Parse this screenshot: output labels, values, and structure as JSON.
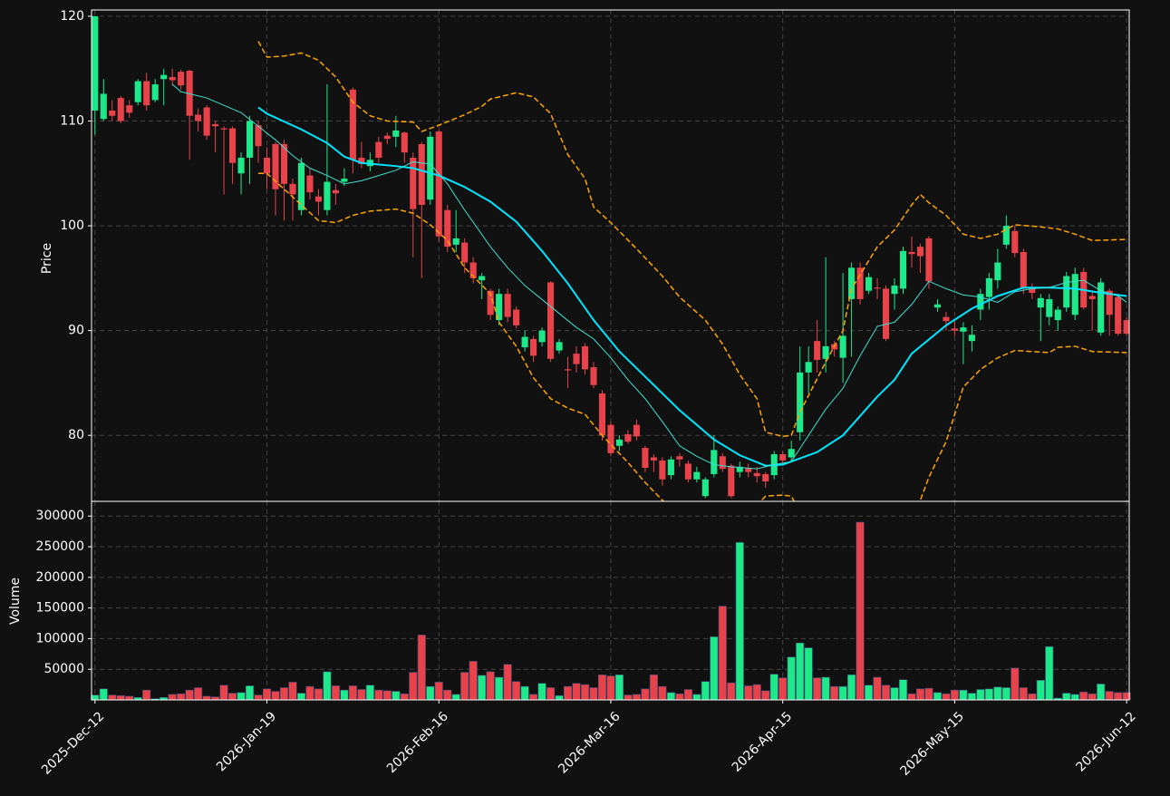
{
  "chart_data": {
    "type": "candlestick",
    "ylabel": "Price",
    "volume_label": "Volume",
    "categories": [
      "2025-Dec-12",
      null,
      null,
      null,
      null,
      null,
      null,
      null,
      null,
      null,
      null,
      null,
      null,
      null,
      null,
      null,
      null,
      null,
      null,
      null,
      "2026-Jan-19",
      null,
      null,
      null,
      null,
      null,
      null,
      null,
      null,
      null,
      null,
      null,
      null,
      null,
      null,
      null,
      null,
      null,
      null,
      null,
      "2026-Feb-16",
      null,
      null,
      null,
      null,
      null,
      null,
      null,
      null,
      null,
      null,
      null,
      null,
      null,
      null,
      null,
      null,
      null,
      null,
      null,
      "2026-Mar-16",
      null,
      null,
      null,
      null,
      null,
      null,
      null,
      null,
      null,
      null,
      null,
      null,
      null,
      null,
      null,
      null,
      null,
      null,
      null,
      "2026-Apr-15",
      null,
      null,
      null,
      null,
      null,
      null,
      null,
      null,
      null,
      null,
      null,
      null,
      null,
      null,
      null,
      null,
      null,
      null,
      null,
      "2026-May-15",
      null,
      null,
      null,
      null,
      null,
      null,
      null,
      null,
      null,
      null,
      null,
      null,
      null,
      null,
      null,
      null,
      null,
      null,
      null,
      "2026-Jun-12"
    ],
    "open": [
      111,
      110.2,
      111,
      112.2,
      111.5,
      111.8,
      113.8,
      112,
      114,
      114.2,
      114.7,
      114.8,
      110.6,
      111.3,
      109.7,
      109.3,
      109.3,
      105,
      106.5,
      109.6,
      106.5,
      107.8,
      107.8,
      104,
      101.5,
      104.8,
      102.8,
      101.5,
      103.4,
      104.2,
      113,
      106.5,
      105.7,
      108,
      108.6,
      108.5,
      108.9,
      106.5,
      107.8,
      102.5,
      109,
      101.5,
      98.2,
      98.4,
      96.5,
      94.8,
      93.8,
      91,
      93.5,
      92,
      88.4,
      89.2,
      88.9,
      94.6,
      88.1,
      86.3,
      87.8,
      88.5,
      86.5,
      84,
      81,
      79,
      80.1,
      81,
      78.8,
      77.9,
      77.6,
      76.2,
      78,
      77.3,
      75.8,
      74.2,
      76.3,
      78,
      77.1,
      76.5,
      76.9,
      76.4,
      76.3,
      76.2,
      78.2,
      77.9,
      80.3,
      86,
      89,
      87.3,
      88.7,
      87.4,
      93,
      96,
      93.8,
      94.1,
      94,
      93.5,
      94,
      97.5,
      98,
      98.8,
      92.2,
      91.3,
      90.2,
      89.9,
      89,
      92,
      93.2,
      94.8,
      98.2,
      99.5,
      97.5,
      94,
      92.2,
      91.3,
      91,
      92.2,
      91.5,
      95.6,
      93.3,
      89.8,
      93.8,
      93.2,
      91
    ],
    "high": [
      120,
      114,
      112,
      112.4,
      112,
      114,
      114.6,
      114,
      115,
      115,
      114.9,
      114.9,
      111.2,
      111.5,
      110,
      109.5,
      109.5,
      107,
      110.5,
      110,
      107.5,
      108,
      108.2,
      104.5,
      106.5,
      105.5,
      103.5,
      113.5,
      104,
      105.5,
      113.2,
      108,
      107,
      108.5,
      108.9,
      110.5,
      109,
      107,
      108,
      109,
      109.2,
      102,
      101.5,
      98.8,
      97,
      95.5,
      94,
      94,
      94,
      92.3,
      90,
      89.5,
      90.3,
      94.7,
      89.2,
      87.5,
      88.5,
      88.8,
      87,
      84.3,
      81.3,
      80,
      80.5,
      81.5,
      79,
      78.2,
      77.9,
      78,
      78.3,
      77.6,
      77,
      76,
      80,
      78.3,
      77.3,
      77.5,
      77.3,
      77,
      76.5,
      78.5,
      78.5,
      79.5,
      88.5,
      88.5,
      91,
      97,
      89,
      95.5,
      96.5,
      96.5,
      95.5,
      95,
      94.3,
      95,
      98,
      99,
      98.3,
      99,
      93,
      91.8,
      91,
      90.8,
      90.5,
      94,
      95.5,
      97.8,
      101,
      100,
      97.8,
      94.5,
      93.5,
      93.5,
      92.3,
      95.6,
      96,
      96,
      93.7,
      95,
      94,
      93.5,
      91.3
    ],
    "low": [
      108.7,
      110,
      110,
      109.8,
      110.3,
      111.5,
      111,
      111.8,
      111.5,
      113.4,
      113,
      106.3,
      109,
      108.2,
      107,
      103,
      104,
      103,
      104,
      106,
      103.5,
      101,
      100.5,
      100.5,
      101,
      102.5,
      101,
      101,
      102,
      103.8,
      105,
      105.5,
      105.2,
      106,
      107.8,
      107.5,
      106,
      97,
      95,
      102,
      98.5,
      97.5,
      97.5,
      95.5,
      94.5,
      93,
      91,
      90.5,
      90.8,
      90.2,
      88,
      87,
      88.5,
      87,
      87.8,
      84.5,
      86,
      85.8,
      84.5,
      79.5,
      78,
      78.5,
      79.2,
      79.5,
      76.5,
      76.5,
      75.2,
      75.8,
      77,
      75.5,
      75.5,
      74,
      76,
      76.5,
      74,
      76,
      76,
      75.5,
      75,
      75.8,
      77.3,
      77.5,
      79.5,
      84,
      86,
      86,
      87.5,
      85,
      87.5,
      92.5,
      93.5,
      93,
      89,
      92,
      93.5,
      96,
      95.5,
      94,
      91.8,
      90,
      89.5,
      86.8,
      88,
      91,
      92,
      94,
      97.8,
      97,
      93.5,
      93,
      89,
      90.5,
      90,
      91.8,
      91,
      92,
      90,
      89.5,
      89.5,
      89.5,
      89.5
    ],
    "close": [
      120,
      112.6,
      110.5,
      110,
      110.8,
      113.8,
      111.5,
      113.5,
      114.4,
      113.9,
      113.4,
      110.5,
      110,
      108.6,
      109.5,
      109.2,
      106,
      106.5,
      110,
      107.6,
      105,
      103.5,
      104,
      103,
      106,
      103.2,
      102.3,
      104.2,
      103.1,
      104.5,
      106.3,
      105.9,
      106.3,
      106.5,
      108.3,
      109.1,
      107,
      101.6,
      102,
      108.5,
      99,
      98,
      98.8,
      96.5,
      95,
      95.2,
      91.5,
      93.5,
      91.3,
      90.5,
      89.4,
      87.6,
      90,
      87.3,
      88.9,
      86.2,
      86.8,
      86.3,
      84.8,
      80,
      78.3,
      79.6,
      79.4,
      79.9,
      76.9,
      77.6,
      75.8,
      77.7,
      77.7,
      75.8,
      76.5,
      75.8,
      78.6,
      76.8,
      74.2,
      77,
      76.5,
      76.1,
      75.6,
      78.2,
      77.6,
      78.7,
      86,
      87,
      87.2,
      88.5,
      88.2,
      89.5,
      96,
      93,
      95.1,
      94,
      89.2,
      94.3,
      97.6,
      97.3,
      97.1,
      94.7,
      92.5,
      90.9,
      90,
      90.3,
      89.6,
      93.5,
      95,
      96.5,
      100,
      97.4,
      94,
      93.6,
      93.1,
      93,
      92,
      95.2,
      95.4,
      92.2,
      93,
      94.6,
      91.5,
      89.7,
      89.7
    ],
    "volume": [
      8000,
      18000,
      8000,
      7000,
      6000,
      4000,
      16000,
      2000,
      4000,
      9000,
      10000,
      16000,
      20000,
      6000,
      5000,
      24000,
      11000,
      12000,
      23000,
      8000,
      18000,
      14000,
      20000,
      29000,
      11000,
      22000,
      18000,
      46000,
      23000,
      16000,
      23000,
      17000,
      24000,
      16000,
      15000,
      14000,
      10000,
      45000,
      106000,
      22000,
      29000,
      16000,
      9000,
      45000,
      63000,
      40000,
      46000,
      37000,
      58000,
      30000,
      22000,
      9000,
      27000,
      20000,
      7000,
      22000,
      27000,
      25000,
      20000,
      41000,
      39000,
      41000,
      8000,
      9000,
      18000,
      41000,
      22000,
      12000,
      10000,
      17000,
      9000,
      30000,
      103000,
      153000,
      28000,
      257000,
      23000,
      25000,
      15000,
      42000,
      36000,
      70000,
      93000,
      85000,
      36000,
      37000,
      22000,
      22000,
      41000,
      290000,
      24000,
      37000,
      24000,
      20000,
      33000,
      10000,
      18000,
      19000,
      12000,
      10000,
      16000,
      16000,
      11000,
      17000,
      18000,
      21000,
      20000,
      52000,
      20000,
      10000,
      32000,
      87000,
      3000,
      11000,
      9000,
      13000,
      10000,
      26000,
      14000,
      12000,
      12000
    ],
    "up_color": "#1de98b",
    "down_color": "#e8434b",
    "xlim": [
      -0.4,
      120.3
    ],
    "ylim": [
      73.7,
      120.6
    ],
    "yticks": [
      80,
      90,
      100,
      110,
      120
    ],
    "volume_ylim": [
      0,
      324000
    ],
    "volume_yticks": [
      50000,
      100000,
      150000,
      200000,
      250000,
      300000
    ],
    "grid": true,
    "overlays": [
      {
        "color": "#ffa500",
        "dash": true,
        "width": 1.5,
        "x": [
          19,
          20,
          22,
          24,
          26,
          28,
          30,
          32,
          34,
          37,
          38,
          40,
          43,
          45,
          46,
          49,
          51,
          53,
          55,
          57,
          58,
          60,
          63,
          66,
          68,
          71,
          73,
          75,
          77,
          78,
          80,
          81,
          82,
          85,
          87,
          88,
          91,
          93,
          95,
          96,
          97,
          99,
          101,
          103,
          105,
          107,
          110,
          112,
          114,
          116,
          120
        ],
        "values": [
          117.6,
          116.1,
          116.2,
          116.5,
          115.8,
          114.2,
          111.8,
          110.5,
          110,
          109.9,
          109,
          109.6,
          110.6,
          111.4,
          112.1,
          112.7,
          112.3,
          110.7,
          106.8,
          104.5,
          101.8,
          100.3,
          97.8,
          95.2,
          93.2,
          91,
          88.7,
          85.8,
          83.5,
          80.3,
          79.9,
          80,
          82.2,
          87,
          90,
          94,
          98,
          99.6,
          102,
          103,
          102.2,
          101,
          99.2,
          98.8,
          99.2,
          100.1,
          99.9,
          99.7,
          99.2,
          98.6,
          98.7
        ]
      },
      {
        "color": "#ffa500",
        "dash": true,
        "width": 1.5,
        "x": [
          19,
          20,
          22,
          24,
          26,
          28,
          30,
          32,
          35,
          37,
          39,
          41,
          43,
          46,
          47,
          49,
          51,
          53,
          55,
          57,
          59,
          62,
          64,
          66,
          68,
          72,
          76,
          78,
          80,
          81,
          83,
          88,
          92,
          95,
          96,
          97,
          99,
          101,
          103,
          105,
          107,
          111,
          112,
          114,
          116,
          120
        ],
        "values": [
          105,
          105,
          103.5,
          102,
          100.5,
          100.3,
          101,
          101.4,
          101.6,
          101.2,
          100.1,
          98.6,
          96,
          93.5,
          90.8,
          88.5,
          85.5,
          83.5,
          82.6,
          82,
          80,
          77.4,
          75.5,
          73.8,
          72.8,
          71.5,
          72.5,
          74.2,
          74.3,
          74.2,
          71,
          68,
          69,
          72,
          73.8,
          76,
          79.4,
          84.6,
          86.3,
          87.4,
          88.1,
          87.9,
          88.4,
          88.5,
          88,
          87.9
        ]
      },
      {
        "color": "#00e5ff",
        "dash": false,
        "width": 2,
        "x": [
          19,
          20,
          24,
          27,
          29,
          31,
          35,
          37,
          40,
          43,
          46,
          49,
          52,
          55,
          58,
          61,
          65,
          68,
          72,
          75,
          78,
          80,
          84,
          87,
          91,
          93,
          95,
          99,
          102,
          105,
          108,
          111,
          114,
          117,
          120
        ],
        "values": [
          111.3,
          110.7,
          109.2,
          107.9,
          106.6,
          106,
          105.7,
          105.5,
          104.8,
          103.7,
          102.3,
          100.4,
          97.6,
          94.5,
          91,
          88,
          84.8,
          82.4,
          79.6,
          78.1,
          77.1,
          77.2,
          78.4,
          80,
          83.7,
          85.3,
          87.8,
          90.5,
          92.1,
          93.3,
          94.1,
          94.1,
          94,
          93.6,
          93.3
        ]
      },
      {
        "color": "#40e0d0",
        "dash": false,
        "width": 1,
        "x": [
          9,
          10,
          13,
          15,
          17,
          19,
          21,
          23,
          25,
          27,
          29,
          31,
          33,
          35,
          37,
          39,
          41,
          43,
          46,
          48,
          50,
          53,
          56,
          58,
          60,
          62,
          64,
          66,
          68,
          70,
          72,
          74,
          77,
          79,
          81,
          83,
          85,
          87,
          89,
          91,
          93,
          95,
          97,
          99,
          101,
          103,
          105,
          107,
          109,
          111,
          113,
          115,
          117,
          119,
          120
        ],
        "values": [
          113.5,
          112.8,
          112.2,
          111.5,
          110.8,
          109.5,
          108.2,
          106.7,
          105.5,
          104.8,
          104,
          104.3,
          104.8,
          105.3,
          106.1,
          105.9,
          104,
          101.5,
          98,
          96,
          94.3,
          92.3,
          90.3,
          89.2,
          87.4,
          85.3,
          83.5,
          81.3,
          79,
          78,
          77.2,
          77,
          76.8,
          77.2,
          77.5,
          80,
          82.5,
          84.5,
          87.6,
          90.4,
          90.8,
          92.5,
          94.7,
          94,
          93.4,
          93.2,
          92.7,
          93.7,
          94,
          94.1,
          94.6,
          94.8,
          93.8,
          93.3,
          92.7
        ]
      }
    ]
  }
}
